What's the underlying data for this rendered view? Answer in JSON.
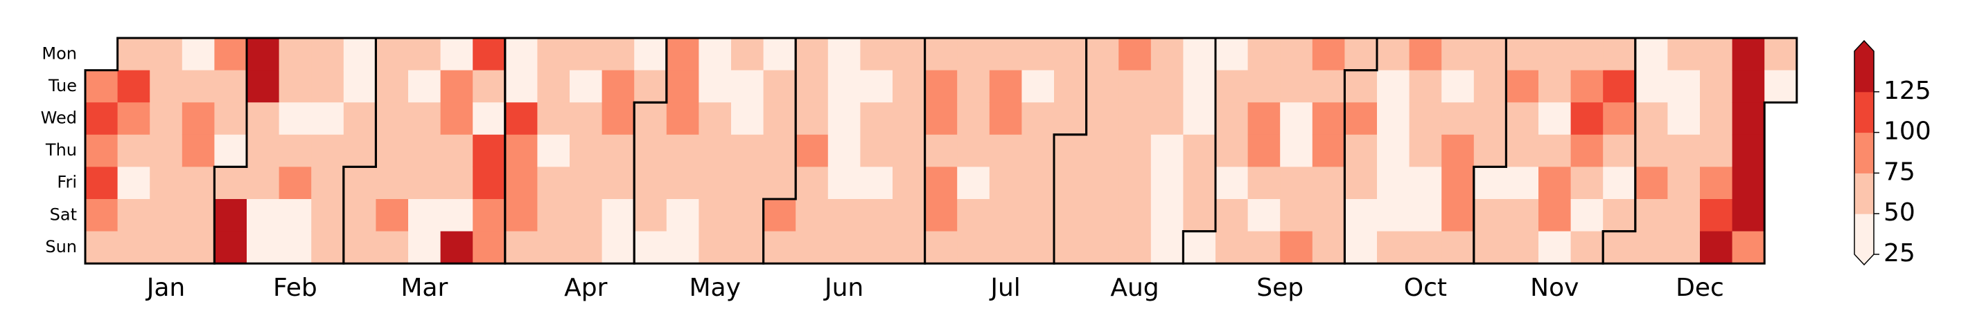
{
  "chart_data": {
    "type": "calendar_heatmap",
    "days": [
      "Mon",
      "Tue",
      "Wed",
      "Thu",
      "Fri",
      "Sat",
      "Sun"
    ],
    "start_day": "Tue",
    "months": [
      {
        "name": "Jan",
        "values": [
          88,
          112,
          88,
          112,
          88,
          62,
          62,
          112,
          88,
          62,
          38,
          62,
          62,
          62,
          62,
          62,
          62,
          62,
          62,
          62,
          38,
          62,
          88,
          88,
          62,
          62,
          62,
          88,
          62,
          62,
          38
        ]
      },
      {
        "name": "Feb",
        "values": [
          62,
          138,
          138,
          138,
          138,
          62,
          62,
          62,
          38,
          38,
          62,
          62,
          38,
          62,
          88,
          38,
          38,
          62,
          62,
          38,
          62,
          62,
          62,
          62,
          38,
          38,
          62,
          62
        ]
      },
      {
        "name": "Mar",
        "values": [
          62,
          62,
          62,
          62,
          62,
          62,
          62,
          62,
          88,
          62,
          62,
          38,
          62,
          62,
          62,
          38,
          38,
          38,
          88,
          88,
          62,
          62,
          38,
          138,
          112,
          62,
          38,
          112,
          112,
          88,
          88
        ]
      },
      {
        "name": "Apr",
        "values": [
          38,
          38,
          112,
          88,
          88,
          88,
          62,
          62,
          62,
          62,
          38,
          62,
          62,
          62,
          62,
          38,
          62,
          62,
          62,
          62,
          62,
          62,
          88,
          88,
          62,
          62,
          38,
          38,
          38,
          62
        ]
      },
      {
        "name": "May",
        "values": [
          62,
          62,
          62,
          62,
          38,
          88,
          88,
          88,
          62,
          62,
          38,
          38,
          38,
          38,
          62,
          62,
          62,
          62,
          62,
          62,
          38,
          38,
          62,
          62,
          62,
          62,
          38,
          62,
          62,
          62,
          62
        ]
      },
      {
        "name": "Jun",
        "values": [
          88,
          62,
          62,
          62,
          62,
          88,
          62,
          62,
          62,
          38,
          38,
          38,
          38,
          38,
          62,
          62,
          62,
          38,
          62,
          62,
          38,
          62,
          62,
          62,
          62,
          62,
          62,
          62,
          62,
          62
        ]
      },
      {
        "name": "Jul",
        "values": [
          62,
          88,
          88,
          62,
          88,
          88,
          62,
          62,
          62,
          62,
          62,
          38,
          62,
          62,
          62,
          88,
          88,
          62,
          62,
          62,
          62,
          62,
          38,
          62,
          62,
          62,
          62,
          62,
          62,
          62,
          62
        ]
      },
      {
        "name": "Aug",
        "values": [
          62,
          62,
          62,
          62,
          62,
          62,
          62,
          62,
          62,
          62,
          62,
          88,
          62,
          62,
          62,
          62,
          62,
          62,
          62,
          62,
          62,
          38,
          38,
          38,
          38,
          38,
          38,
          38,
          62,
          62,
          62
        ]
      },
      {
        "name": "Sep",
        "values": [
          38,
          38,
          62,
          62,
          62,
          38,
          62,
          62,
          62,
          62,
          88,
          88,
          62,
          38,
          62,
          62,
          62,
          38,
          38,
          62,
          62,
          88,
          88,
          62,
          88,
          88,
          62,
          62,
          62,
          62
        ]
      },
      {
        "name": "Oct",
        "values": [
          62,
          88,
          62,
          62,
          38,
          38,
          62,
          38,
          38,
          38,
          38,
          38,
          62,
          88,
          62,
          62,
          62,
          38,
          38,
          62,
          62,
          38,
          62,
          88,
          88,
          88,
          62,
          62,
          62,
          62,
          62
        ]
      },
      {
        "name": "Nov",
        "values": [
          38,
          62,
          62,
          62,
          88,
          62,
          62,
          38,
          62,
          62,
          62,
          62,
          38,
          62,
          88,
          88,
          38,
          62,
          88,
          112,
          88,
          62,
          38,
          62,
          62,
          112,
          88,
          62,
          38,
          62
        ]
      },
      {
        "name": "Dec",
        "values": [
          62,
          38,
          38,
          62,
          62,
          88,
          62,
          62,
          62,
          38,
          38,
          62,
          62,
          62,
          62,
          62,
          62,
          62,
          62,
          88,
          112,
          138,
          138,
          138,
          138,
          138,
          138,
          138,
          88,
          62,
          38
        ]
      }
    ],
    "colorbar": {
      "lim": [
        25,
        150
      ],
      "ticks": [
        25,
        50,
        75,
        100,
        125
      ],
      "colors": [
        "#fff0e8",
        "#fcc5ad",
        "#fb8b6b",
        "#ef4533",
        "#bb151b"
      ],
      "extend": "both"
    }
  }
}
